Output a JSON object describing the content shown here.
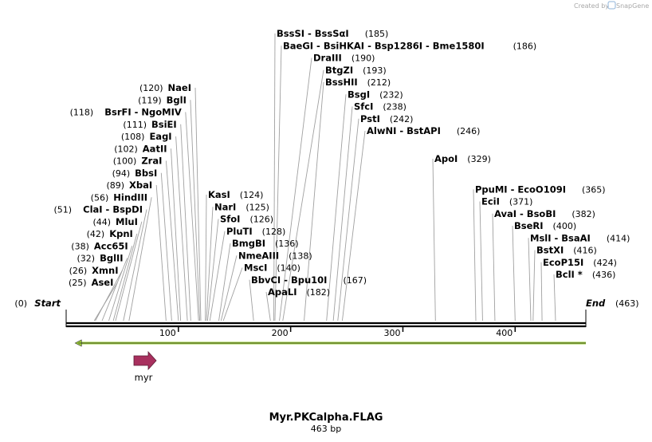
{
  "credit": {
    "text": "Created by",
    "brand": "SnapGene"
  },
  "sequence": {
    "name": "Myr.PKCalpha.FLAG",
    "length_label": "463 bp",
    "length": 463
  },
  "axis": {
    "ticks": [
      100,
      200,
      300,
      400
    ]
  },
  "ends": [
    {
      "label": "Start",
      "pos_text": "(0)",
      "pos": 0,
      "side": "left"
    },
    {
      "label": "End",
      "pos_text": "(463)",
      "pos": 463,
      "side": "right"
    }
  ],
  "features": [
    {
      "name": "myr",
      "start": 60,
      "end": 80,
      "direction": "forward",
      "color": "#a8305e"
    }
  ],
  "primer": {
    "start": 8,
    "end": 463,
    "direction": "reverse",
    "color": "#99cc33"
  },
  "sites_left": [
    {
      "label": "NaeI",
      "pos_text": "(120)",
      "pos": 120
    },
    {
      "label": "BglI",
      "pos_text": "(119)",
      "pos": 119
    },
    {
      "label": "BsrFI  -  NgoMIV",
      "pos_text": "(118)",
      "pos": 118
    },
    {
      "label": "BsiEI",
      "pos_text": "(111)",
      "pos": 111
    },
    {
      "label": "EagI",
      "pos_text": "(108)",
      "pos": 108
    },
    {
      "label": "AatII",
      "pos_text": "(102)",
      "pos": 102
    },
    {
      "label": "ZraI",
      "pos_text": "(100)",
      "pos": 100
    },
    {
      "label": "BbsI",
      "pos_text": "(94)",
      "pos": 94
    },
    {
      "label": "XbaI",
      "pos_text": "(89)",
      "pos": 89
    },
    {
      "label": "HindIII",
      "pos_text": "(56)",
      "pos": 56
    },
    {
      "label": "ClaI  -  BspDI",
      "pos_text": "(51)",
      "pos": 51
    },
    {
      "label": "MluI",
      "pos_text": "(44)",
      "pos": 44
    },
    {
      "label": "KpnI",
      "pos_text": "(42)",
      "pos": 42
    },
    {
      "label": "Acc65I",
      "pos_text": "(38)",
      "pos": 38
    },
    {
      "label": "BglII",
      "pos_text": "(32)",
      "pos": 32
    },
    {
      "label": "XmnI",
      "pos_text": "(26)",
      "pos": 26
    },
    {
      "label": "AseI",
      "pos_text": "(25)",
      "pos": 25
    }
  ],
  "sites_right": [
    {
      "label": "BssSI  -  BssSαI",
      "pos_text": "(185)",
      "pos": 185
    },
    {
      "label": "BaeGI  -  BsiHKAI  -  Bsp1286I  -  Bme1580I",
      "pos_text": "(186)",
      "pos": 186
    },
    {
      "label": "DraIII",
      "pos_text": "(190)",
      "pos": 190
    },
    {
      "label": "BtgZI",
      "pos_text": "(193)",
      "pos": 193
    },
    {
      "label": "BssHII",
      "pos_text": "(212)",
      "pos": 212
    },
    {
      "label": "BsgI",
      "pos_text": "(232)",
      "pos": 232
    },
    {
      "label": "SfcI",
      "pos_text": "(238)",
      "pos": 238
    },
    {
      "label": "PstI",
      "pos_text": "(242)",
      "pos": 242
    },
    {
      "label": "AlwNI  -  BstAPI",
      "pos_text": "(246)",
      "pos": 246
    },
    {
      "label": "KasI",
      "pos_text": "(124)",
      "pos": 124
    },
    {
      "label": "NarI",
      "pos_text": "(125)",
      "pos": 125
    },
    {
      "label": "SfoI",
      "pos_text": "(126)",
      "pos": 126
    },
    {
      "label": "PluTI",
      "pos_text": "(128)",
      "pos": 128
    },
    {
      "label": "BmgBI",
      "pos_text": "(136)",
      "pos": 136
    },
    {
      "label": "NmeAIII",
      "pos_text": "(138)",
      "pos": 138
    },
    {
      "label": "MscI",
      "pos_text": "(140)",
      "pos": 140
    },
    {
      "label": "BbvCI  -  Bpu10I",
      "pos_text": "(167)",
      "pos": 167
    },
    {
      "label": "ApaLI",
      "pos_text": "(182)",
      "pos": 182
    },
    {
      "label": "ApoI",
      "pos_text": "(329)",
      "pos": 329
    },
    {
      "label": "PpuMI  -  EcoO109I",
      "pos_text": "(365)",
      "pos": 365
    },
    {
      "label": "EciI",
      "pos_text": "(371)",
      "pos": 371
    },
    {
      "label": "AvaI  -  BsoBI",
      "pos_text": "(382)",
      "pos": 382
    },
    {
      "label": "BseRI",
      "pos_text": "(400)",
      "pos": 400
    },
    {
      "label": "MslI  -  BsaAI",
      "pos_text": "(414)",
      "pos": 414
    },
    {
      "label": "BstXI",
      "pos_text": "(416)",
      "pos": 416
    },
    {
      "label": "EcoP15I",
      "pos_text": "(424)",
      "pos": 424
    },
    {
      "label": "BclI *",
      "pos_text": "(436)",
      "pos": 436
    }
  ]
}
